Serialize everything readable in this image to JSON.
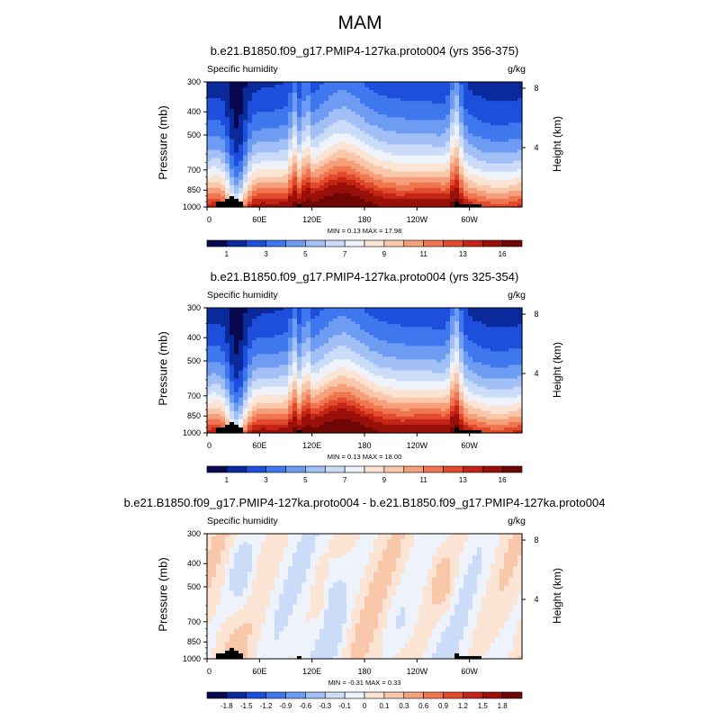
{
  "title": "MAM",
  "colors": {
    "abs_scale": [
      "#08084f",
      "#0a2a9c",
      "#1e4fdc",
      "#3f78ee",
      "#6e9cf3",
      "#a2c0f6",
      "#cbdcf8",
      "#eef3fb",
      "#fbe4d4",
      "#f9c7a9",
      "#f5a07b",
      "#ef7650",
      "#e24a2c",
      "#c42415",
      "#991008",
      "#6e0606"
    ],
    "diff_scale": [
      "#08084f",
      "#0a2a9c",
      "#1e4fdc",
      "#3f78ee",
      "#6e9cf3",
      "#a2c0f6",
      "#cbdcf8",
      "#eef3fb",
      "#fbe4d4",
      "#f9c7a9",
      "#f5a07b",
      "#ef7650",
      "#e24a2c",
      "#c42415",
      "#991008",
      "#6e0606"
    ],
    "terrain": "#000000"
  },
  "chart_data": [
    {
      "type": "heatmap",
      "title": "b.e21.B1850.f09_g17.PMIP4-127ka.proto004 (yrs 356-375)",
      "variable": "Specific humidity",
      "units": "g/kg",
      "ylabel": "Pressure (mb)",
      "y2label": "Height (km)",
      "xticks": [
        "0",
        "60E",
        "120E",
        "180",
        "120W",
        "60W"
      ],
      "yticks": [
        300,
        400,
        500,
        700,
        850,
        1000
      ],
      "y2ticks": [
        "8",
        "4"
      ],
      "min_label": "MIN =   0.13  MAX =  17.98",
      "colorbar_labels": [
        "1",
        "3",
        "5",
        "7",
        "9",
        "11",
        "13",
        "16"
      ],
      "min": 0.13,
      "max": 17.98,
      "mode": "abs",
      "peak_shift": 0.0
    },
    {
      "type": "heatmap",
      "title": "b.e21.B1850.f09_g17.PMIP4-127ka.proto004 (yrs 325-354)",
      "variable": "Specific humidity",
      "units": "g/kg",
      "ylabel": "Pressure (mb)",
      "y2label": "Height (km)",
      "xticks": [
        "0",
        "60E",
        "120E",
        "180",
        "120W",
        "60W"
      ],
      "yticks": [
        300,
        400,
        500,
        700,
        850,
        1000
      ],
      "y2ticks": [
        "8",
        "4"
      ],
      "min_label": "MIN =   0.13  MAX =  18.00",
      "colorbar_labels": [
        "1",
        "3",
        "5",
        "7",
        "9",
        "11",
        "13",
        "16"
      ],
      "min": 0.13,
      "max": 18.0,
      "mode": "abs",
      "peak_shift": 0.05
    },
    {
      "type": "heatmap",
      "title": "b.e21.B1850.f09_g17.PMIP4-127ka.proto004 - b.e21.B1850.f09_g17.PMIP4-127ka.proto004",
      "variable": "Specific humidity",
      "units": "g/kg",
      "ylabel": "Pressure (mb)",
      "y2label": "Height (km)",
      "xticks": [
        "0",
        "60E",
        "120E",
        "180",
        "120W",
        "60W"
      ],
      "yticks": [
        300,
        400,
        500,
        700,
        850,
        1000
      ],
      "y2ticks": [
        "8",
        "4"
      ],
      "min_label": "MIN =  -0.31  MAX =   0.33",
      "colorbar_labels": [
        "-1.8",
        "-1.5",
        "-1.2",
        "-0.9",
        "-0.6",
        "-0.3",
        "-0.1",
        "0",
        "0.1",
        "0.3",
        "0.6",
        "0.9",
        "1.2",
        "1.5",
        "1.8"
      ],
      "min": -0.31,
      "max": 0.33,
      "mode": "diff"
    }
  ]
}
